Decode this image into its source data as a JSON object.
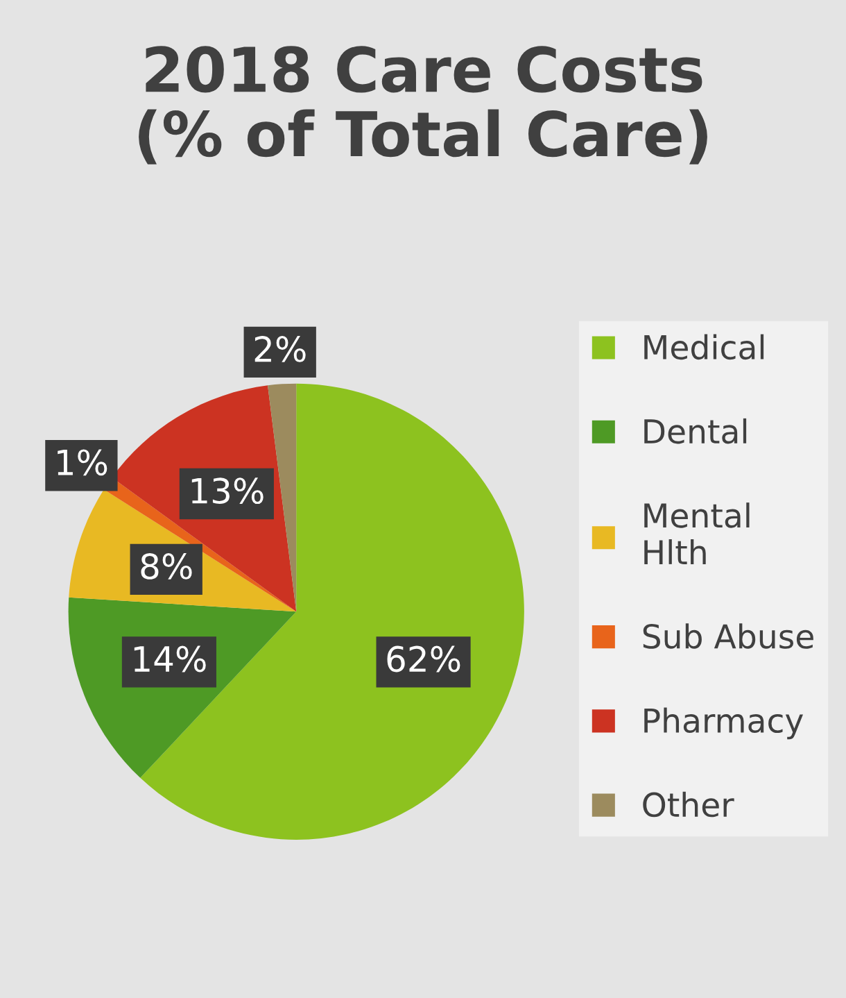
{
  "chart_data": {
    "type": "pie",
    "title": "2018 Care Costs\n(% of Total Care)",
    "categories": [
      "Medical",
      "Dental",
      "Mental\nHlth",
      "Sub Abuse",
      "Pharmacy",
      "Other"
    ],
    "values": [
      62,
      14,
      8,
      1,
      13,
      2
    ],
    "colors": [
      "#8dc21f",
      "#4e9a25",
      "#e8b923",
      "#e8641b",
      "#cc3322",
      "#9c8b5e"
    ],
    "value_labels": [
      "62%",
      "14%",
      "8%",
      "1%",
      "13%",
      "2%"
    ],
    "legend": "right"
  }
}
